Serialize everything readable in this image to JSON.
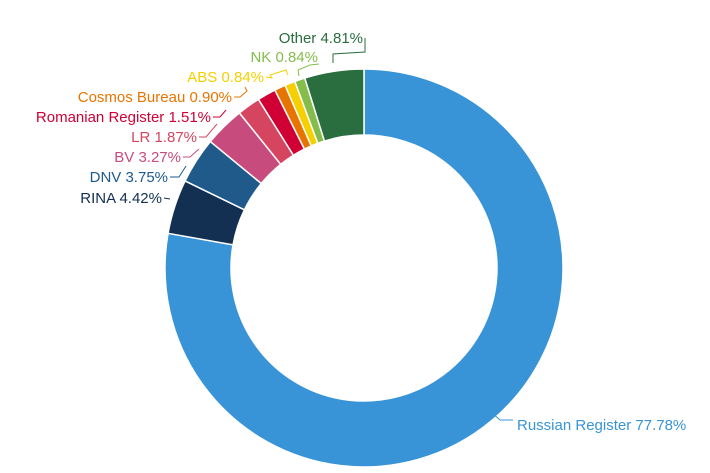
{
  "chart_data": {
    "type": "pie",
    "subtype": "donut",
    "title": "",
    "start": "top",
    "direction": "clockwise",
    "slices": [
      {
        "label": "Russian Register",
        "value": 77.78,
        "display": "Russian Register 77.78%",
        "color": "#3894d6"
      },
      {
        "label": "RINA",
        "value": 4.42,
        "display": "RINA 4.42%",
        "color": "#132f52"
      },
      {
        "label": "DNV",
        "value": 3.75,
        "display": "DNV 3.75%",
        "color": "#1f5a8b"
      },
      {
        "label": "BV",
        "value": 3.27,
        "display": "BV 3.27%",
        "color": "#c84b7d"
      },
      {
        "label": "LR",
        "value": 1.87,
        "display": "LR 1.87%",
        "color": "#d6455f"
      },
      {
        "label": "Romanian Register",
        "value": 1.51,
        "display": "Romanian Register 1.51%",
        "color": "#d00035"
      },
      {
        "label": "Cosmos Bureau",
        "value": 0.9,
        "display": "Cosmos Bureau 0.90%",
        "color": "#e87400"
      },
      {
        "label": "ABS",
        "value": 0.84,
        "display": "ABS 0.84%",
        "color": "#f5cf00"
      },
      {
        "label": "NK",
        "value": 0.84,
        "display": "NK 0.84%",
        "color": "#84bd4b"
      },
      {
        "label": "Other",
        "value": 4.81,
        "display": "Other 4.81%",
        "color": "#2a6e3f"
      }
    ]
  }
}
